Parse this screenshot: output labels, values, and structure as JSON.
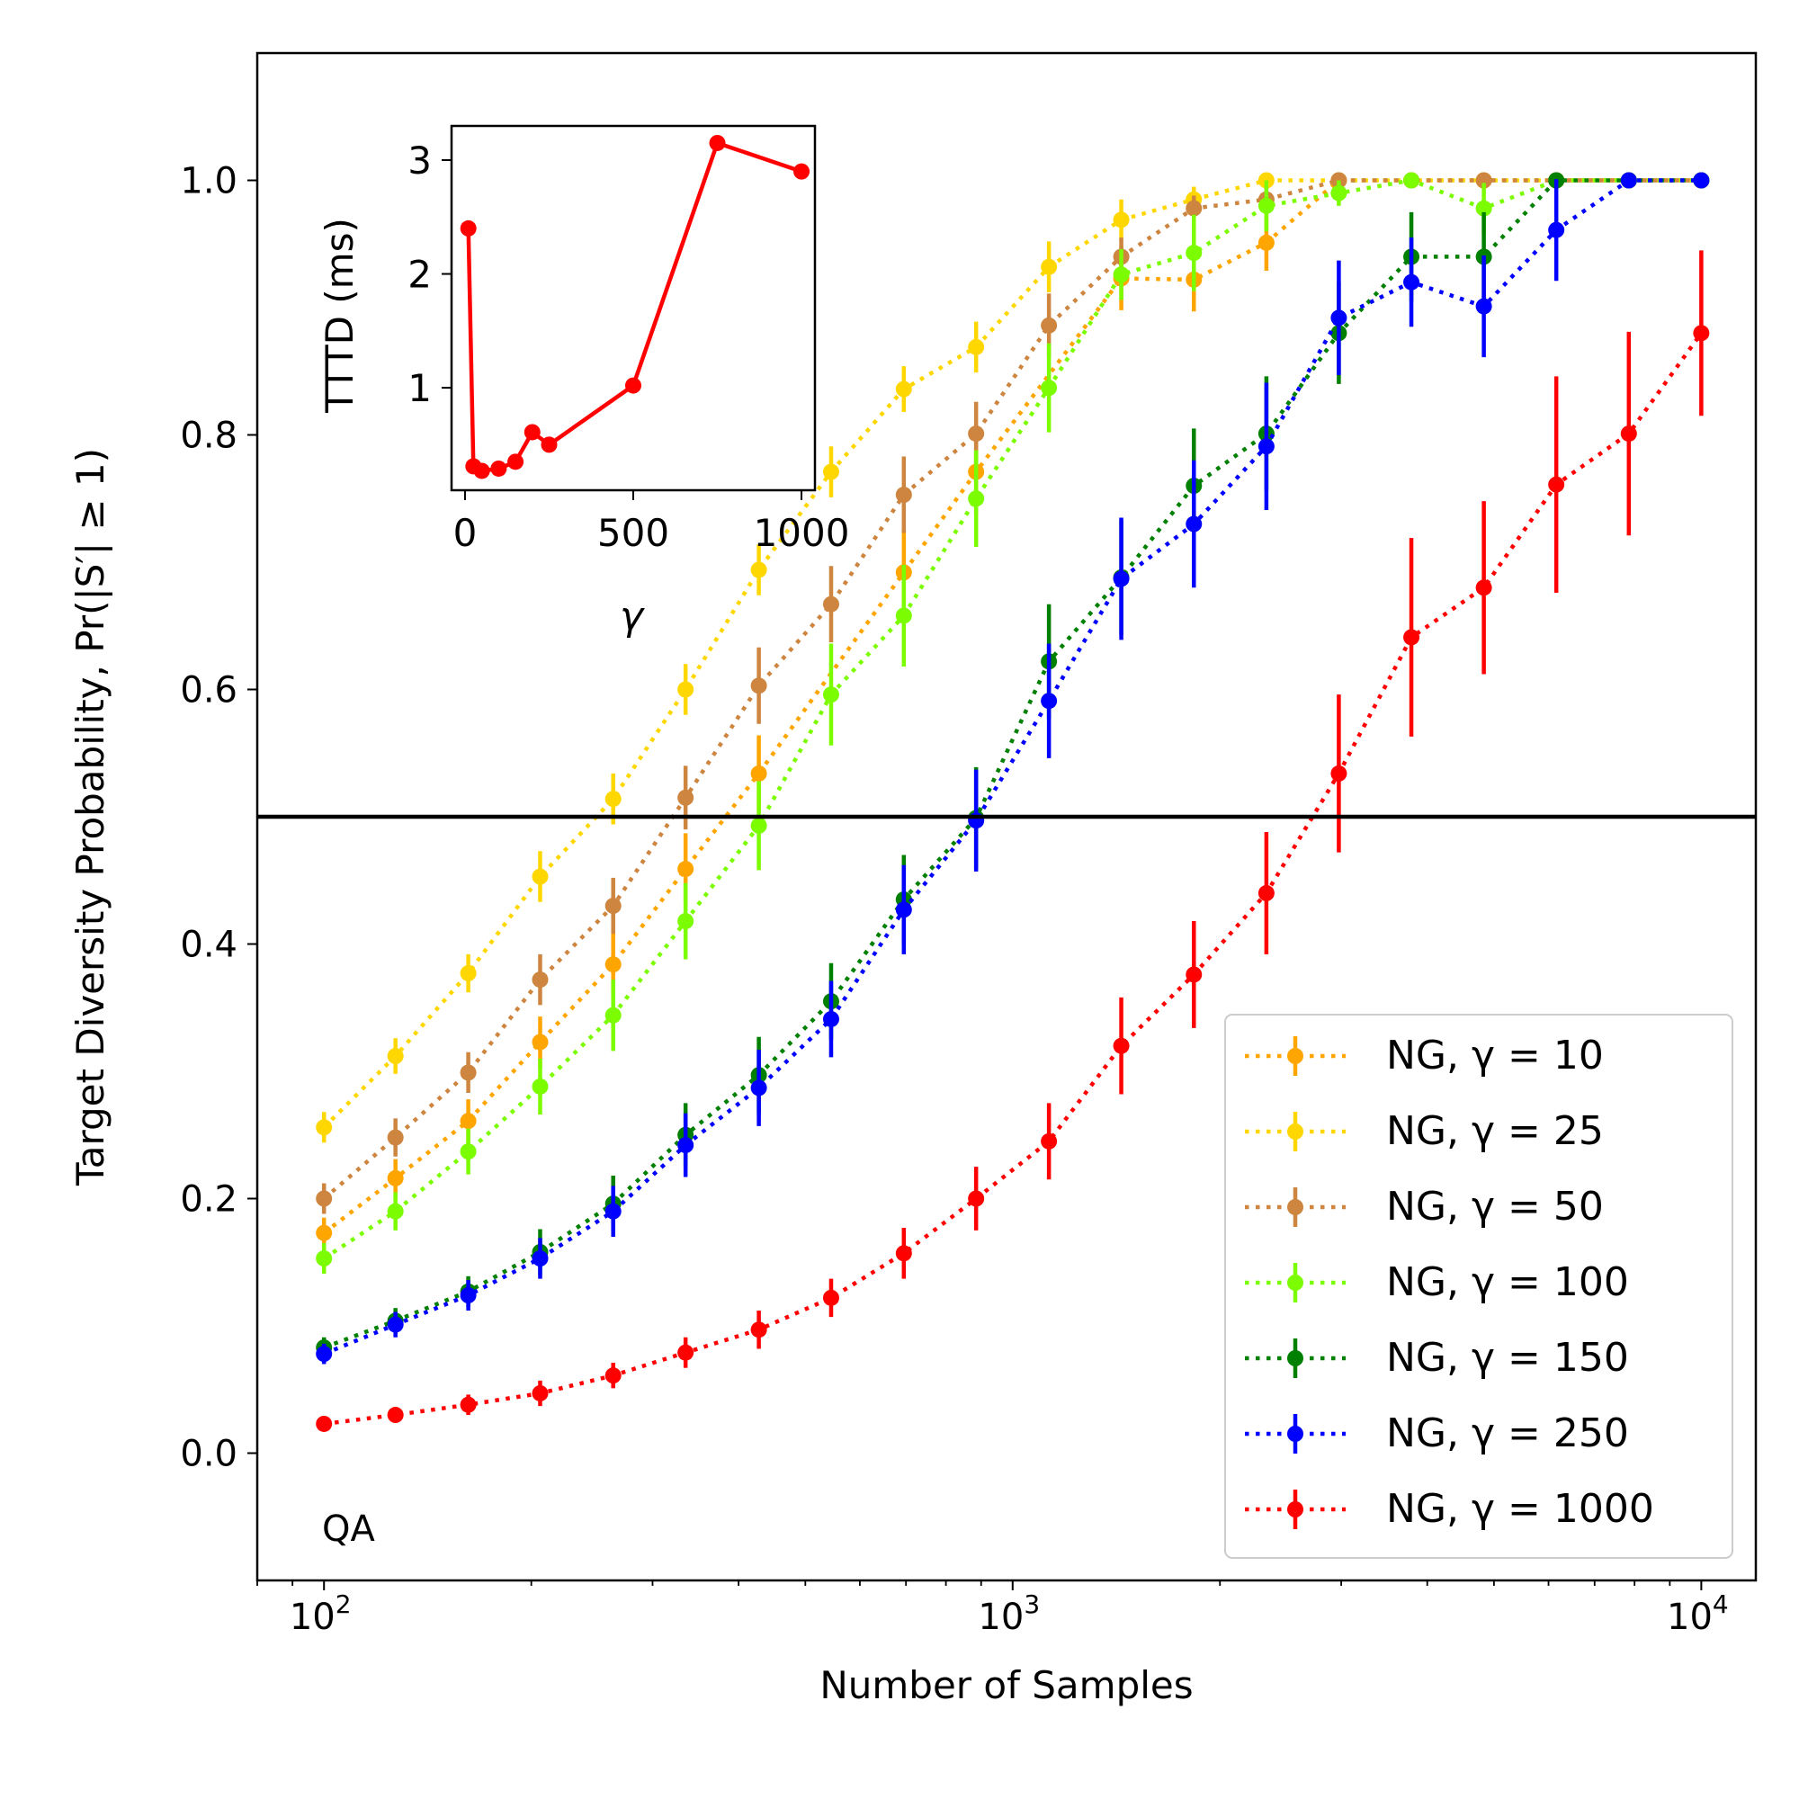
{
  "chart_data": {
    "main": {
      "type": "line",
      "xscale": "log",
      "xlabel": "Number of Samples",
      "ylabel": "Target Diversity Probability, Pr(|S′| ≥ 1)",
      "xlim": [
        80,
        12000
      ],
      "ylim": [
        -0.1,
        1.1
      ],
      "xticks": [
        {
          "value": 100,
          "label": "10",
          "exp": "2"
        },
        {
          "value": 1000,
          "label": "10",
          "exp": "3"
        },
        {
          "value": 10000,
          "label": "10",
          "exp": "4"
        }
      ],
      "yticks": [
        {
          "value": 0.0,
          "label": "0.0"
        },
        {
          "value": 0.2,
          "label": "0.2"
        },
        {
          "value": 0.4,
          "label": "0.4"
        },
        {
          "value": 0.6,
          "label": "0.6"
        },
        {
          "value": 0.8,
          "label": "0.8"
        },
        {
          "value": 1.0,
          "label": "1.0"
        }
      ],
      "hline": 0.5,
      "annotation": "QA",
      "x": [
        100,
        127,
        162,
        206,
        263,
        335,
        428,
        545,
        695,
        885,
        1129,
        1438,
        1833,
        2336,
        2976,
        3793,
        4833,
        6158,
        7848,
        10000
      ],
      "series": [
        {
          "name": "NG, γ = 10",
          "gamma": "10",
          "color": "#FFA500",
          "values": [
            0.173,
            0.216,
            0.261,
            0.323,
            0.384,
            0.459,
            0.534,
            null,
            0.692,
            0.771,
            null,
            0.923,
            0.922,
            0.951,
            1.0,
            1.0,
            1.0,
            1.0,
            1.0,
            1.0
          ],
          "err": [
            0.012,
            0.015,
            0.017,
            0.02,
            0.025,
            0.028,
            0.03,
            null,
            0.035,
            0.035,
            null,
            0.025,
            0.025,
            0.022,
            0.0,
            0.0,
            0.0,
            0.0,
            0.0,
            0.0
          ]
        },
        {
          "name": "NG, γ = 25",
          "gamma": "25",
          "color": "#FFD700",
          "values": [
            0.256,
            0.312,
            0.377,
            0.453,
            0.514,
            0.6,
            0.694,
            0.771,
            0.836,
            0.869,
            0.932,
            0.969,
            0.985,
            1.0,
            1.0,
            1.0,
            1.0,
            1.0,
            1.0,
            1.0
          ],
          "err": [
            0.012,
            0.014,
            0.015,
            0.02,
            0.02,
            0.02,
            0.02,
            0.02,
            0.018,
            0.02,
            0.02,
            0.016,
            0.01,
            0.0,
            0.0,
            0.0,
            0.0,
            0.0,
            0.0,
            0.0
          ]
        },
        {
          "name": "NG, γ = 50",
          "gamma": "50",
          "color": "#CD853F",
          "values": [
            0.2,
            0.248,
            0.299,
            0.372,
            0.43,
            0.515,
            0.603,
            0.667,
            0.753,
            0.801,
            0.886,
            0.94,
            0.978,
            0.985,
            1.0,
            1.0,
            1.0,
            1.0,
            1.0,
            1.0
          ],
          "err": [
            0.012,
            0.015,
            0.016,
            0.02,
            0.022,
            0.025,
            0.03,
            0.03,
            0.03,
            0.025,
            0.025,
            0.015,
            0.01,
            0.01,
            0.0,
            0.0,
            0.0,
            0.0,
            0.0,
            0.0
          ]
        },
        {
          "name": "NG, γ = 100",
          "gamma": "100",
          "color": "#7CFC00",
          "values": [
            0.153,
            0.19,
            0.237,
            0.288,
            0.344,
            0.418,
            0.493,
            0.596,
            0.658,
            0.75,
            0.837,
            0.926,
            0.943,
            0.98,
            0.99,
            1.0,
            0.978,
            1.0,
            1.0,
            1.0
          ],
          "err": [
            0.012,
            0.015,
            0.018,
            0.022,
            0.028,
            0.03,
            0.035,
            0.04,
            0.04,
            0.038,
            0.035,
            0.02,
            0.03,
            0.02,
            0.01,
            0.0,
            0.02,
            0.0,
            0.0,
            0.0
          ]
        },
        {
          "name": "NG, γ = 150",
          "gamma": "150",
          "color": "#008000",
          "values": [
            0.083,
            0.104,
            0.127,
            0.158,
            0.196,
            0.25,
            0.297,
            0.355,
            0.435,
            0.499,
            0.622,
            0.688,
            0.76,
            0.801,
            0.88,
            0.94,
            0.94,
            1.0,
            1.0,
            1.0
          ],
          "err": [
            0.008,
            0.01,
            0.012,
            0.018,
            0.022,
            0.025,
            0.03,
            0.03,
            0.035,
            0.04,
            0.045,
            0.045,
            0.045,
            0.045,
            0.04,
            0.035,
            0.035,
            0.0,
            0.0,
            0.0
          ]
        },
        {
          "name": "NG, γ = 250",
          "gamma": "250",
          "color": "#0000FF",
          "values": [
            0.078,
            0.101,
            0.124,
            0.153,
            0.19,
            0.242,
            0.287,
            0.341,
            0.427,
            0.497,
            0.591,
            0.687,
            0.73,
            0.791,
            0.892,
            0.92,
            0.901,
            0.961,
            1.0,
            1.0
          ],
          "err": [
            0.008,
            0.01,
            0.012,
            0.016,
            0.02,
            0.025,
            0.03,
            0.03,
            0.035,
            0.04,
            0.045,
            0.048,
            0.05,
            0.05,
            0.045,
            0.035,
            0.04,
            0.04,
            0.0,
            0.0
          ]
        },
        {
          "name": "NG, γ = 1000",
          "gamma": "1000",
          "color": "#FF0000",
          "values": [
            0.023,
            0.03,
            0.038,
            0.047,
            0.061,
            0.079,
            0.097,
            0.122,
            0.157,
            0.2,
            0.245,
            0.32,
            0.376,
            0.44,
            0.534,
            0.641,
            0.68,
            0.761,
            0.801,
            0.88
          ],
          "err": [
            0.005,
            0.006,
            0.008,
            0.01,
            0.01,
            0.012,
            0.015,
            0.015,
            0.02,
            0.025,
            0.03,
            0.038,
            0.042,
            0.048,
            0.062,
            0.078,
            0.068,
            0.085,
            0.08,
            0.065
          ]
        }
      ]
    },
    "inset": {
      "type": "line",
      "xlabel": "γ",
      "ylabel": "TTTD (ms)",
      "xlim": [
        -40,
        1040
      ],
      "ylim": [
        0.1,
        3.3
      ],
      "xticks": [
        {
          "value": 0,
          "label": "0"
        },
        {
          "value": 500,
          "label": "500"
        },
        {
          "value": 1000,
          "label": "1000"
        }
      ],
      "yticks": [
        {
          "value": 1,
          "label": "1"
        },
        {
          "value": 2,
          "label": "2"
        },
        {
          "value": 3,
          "label": "3"
        }
      ],
      "color": "#FF0000",
      "x": [
        10,
        25,
        50,
        100,
        150,
        200,
        250,
        500,
        750,
        1000
      ],
      "y": [
        2.4,
        0.31,
        0.27,
        0.29,
        0.35,
        0.61,
        0.5,
        1.02,
        3.15,
        2.9
      ]
    }
  }
}
